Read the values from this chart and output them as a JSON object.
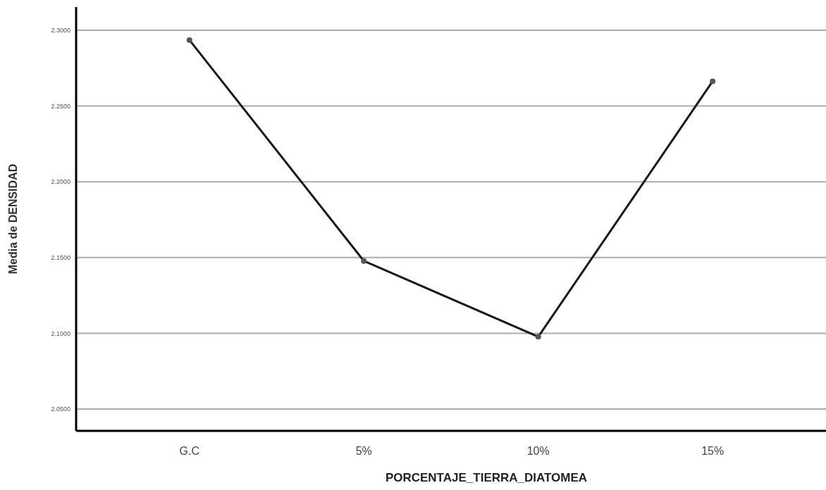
{
  "chart_data": {
    "type": "line",
    "xlabel": "PORCENTAJE_TIERRA_DIATOMEA",
    "ylabel": "Media de DENSIDAD",
    "categories": [
      "G.C",
      "5%",
      "10%",
      "15%"
    ],
    "series": [
      {
        "color": "#1a1a1a",
        "values": [
          2.2935,
          2.1477,
          2.0977,
          2.2663
        ]
      }
    ],
    "ylim": [
      2.0356,
      2.3153
    ],
    "yticks": [
      {
        "value": 2.05,
        "label": "2.0500"
      },
      {
        "value": 2.1,
        "label": "2.1000"
      },
      {
        "value": 2.15,
        "label": "2.1500"
      },
      {
        "value": 2.2,
        "label": "2.2000"
      },
      {
        "value": 2.25,
        "label": "2.2500"
      },
      {
        "value": 2.3,
        "label": "2.3000"
      }
    ],
    "grid": "y",
    "marker": "circle",
    "line_style": "solid"
  }
}
